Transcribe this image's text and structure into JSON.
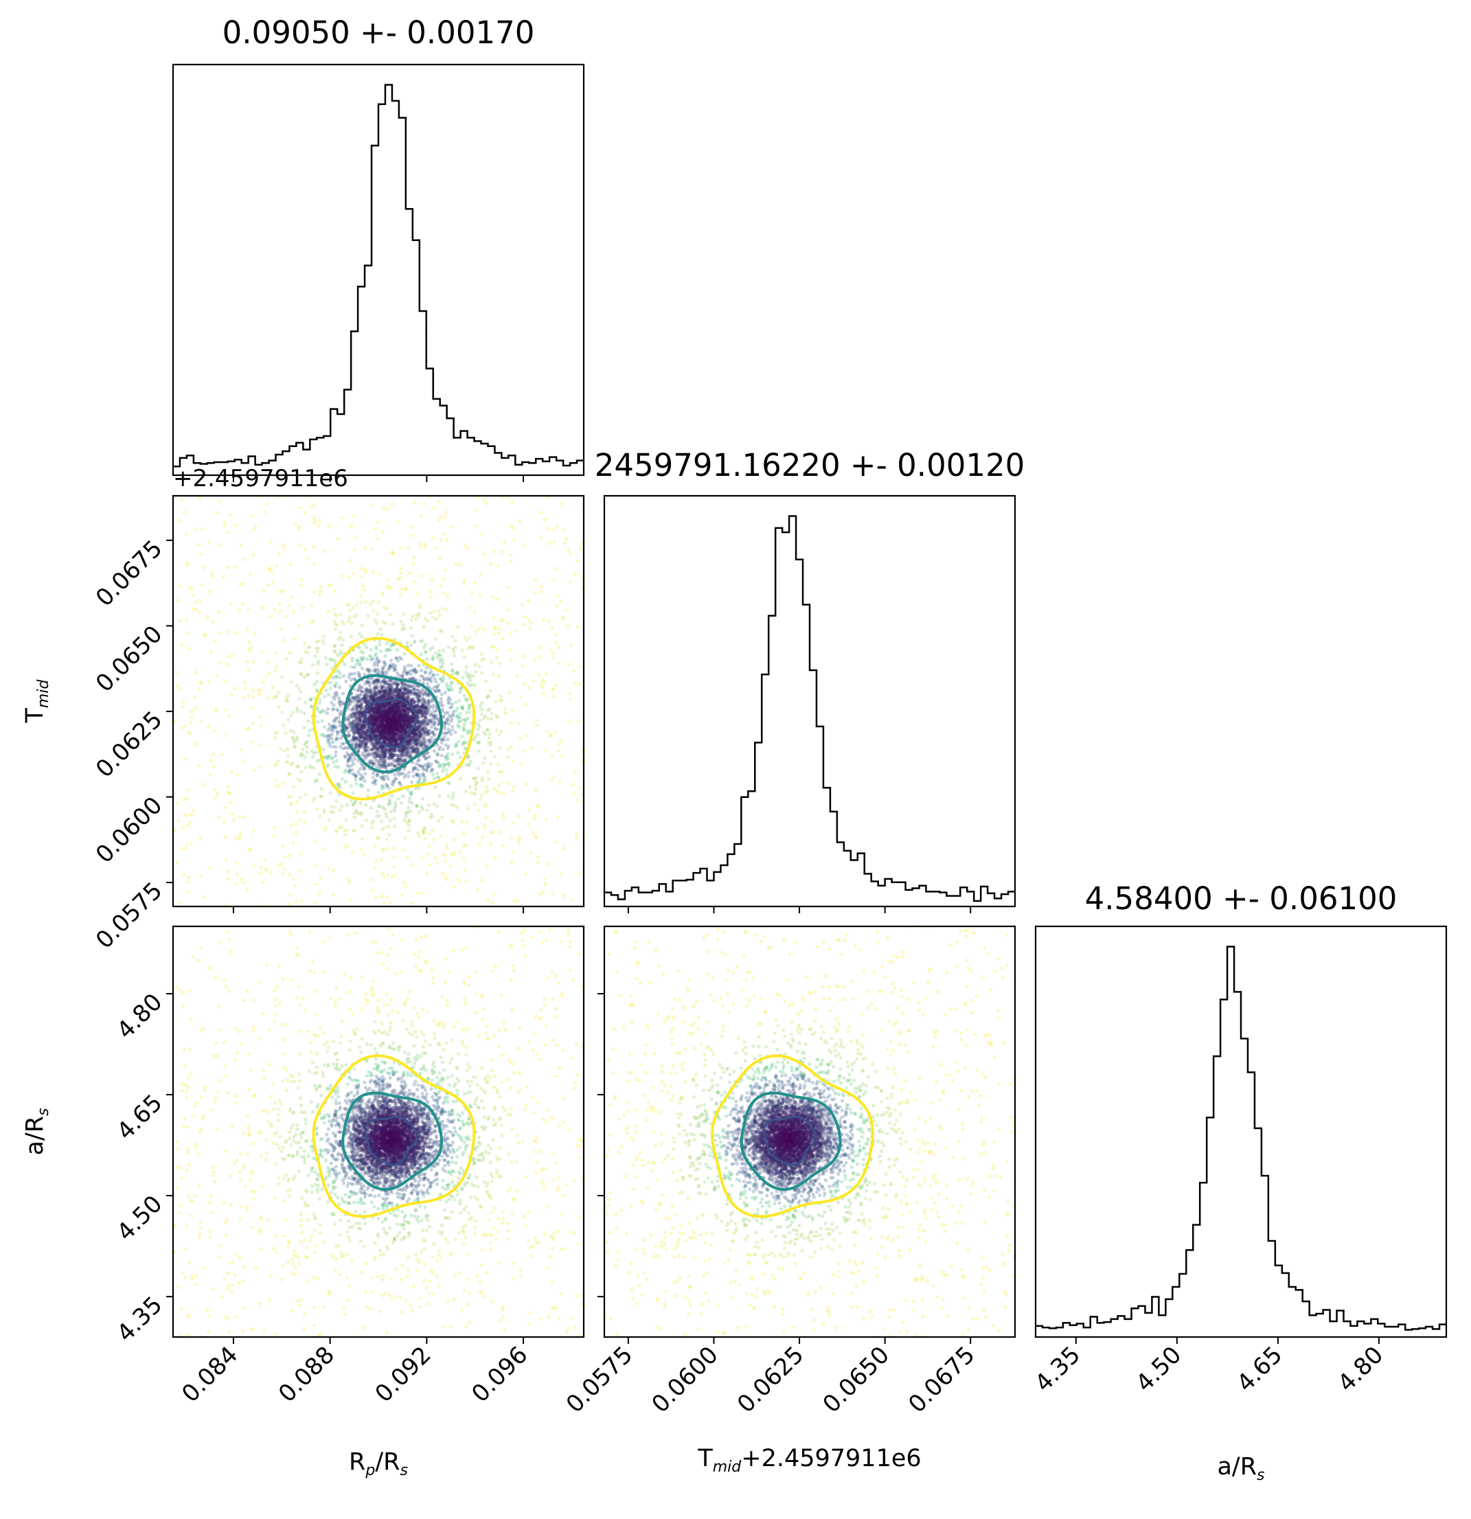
{
  "chart_data": {
    "type": "corner",
    "parameters": [
      {
        "key": "rp",
        "label_main": "R",
        "label_sub": "p",
        "label_tail": "/R",
        "label_sub2": "s",
        "range": [
          0.0815,
          0.0985
        ],
        "ticks": [
          "0.084",
          "0.088",
          "0.092",
          "0.096"
        ],
        "tick_values": [
          0.084,
          0.088,
          0.092,
          0.096
        ],
        "median": 0.0905,
        "sigma": 0.0017,
        "title": "0.09050 +- 0.00170"
      },
      {
        "key": "tmid",
        "label_main": "T",
        "label_sub": "mid",
        "label_tail": "",
        "label_sub2": "",
        "offset_label": "+2.4597911e6",
        "xlabel_suffix": "+2.4597911e6",
        "range": [
          0.0568,
          0.0688
        ],
        "ticks": [
          "0.0575",
          "0.0600",
          "0.0625",
          "0.0650",
          "0.0675"
        ],
        "tick_values": [
          0.0575,
          0.06,
          0.0625,
          0.065,
          0.0675
        ],
        "median": 0.0622,
        "sigma": 0.0012,
        "title": "2459791.16220 +- 0.00120"
      },
      {
        "key": "ars",
        "label_main": "a/R",
        "label_sub": "s",
        "label_tail": "",
        "label_sub2": "",
        "range": [
          4.29,
          4.9
        ],
        "ticks": [
          "4.35",
          "4.50",
          "4.65",
          "4.80"
        ],
        "tick_values": [
          4.35,
          4.5,
          4.65,
          4.8
        ],
        "median": 4.584,
        "sigma": 0.061,
        "title": "4.58400 +- 0.06100"
      }
    ],
    "histogram_bins": 60,
    "density_levels": [
      "1-sigma",
      "2-sigma",
      "3-sigma"
    ],
    "colors": {
      "contour_inner": "#3b528b",
      "contour_mid": "#21918c",
      "contour_outer": "#fde725",
      "points_core": "#440154",
      "points_outer": "#fde725",
      "hist": "#000000"
    }
  }
}
